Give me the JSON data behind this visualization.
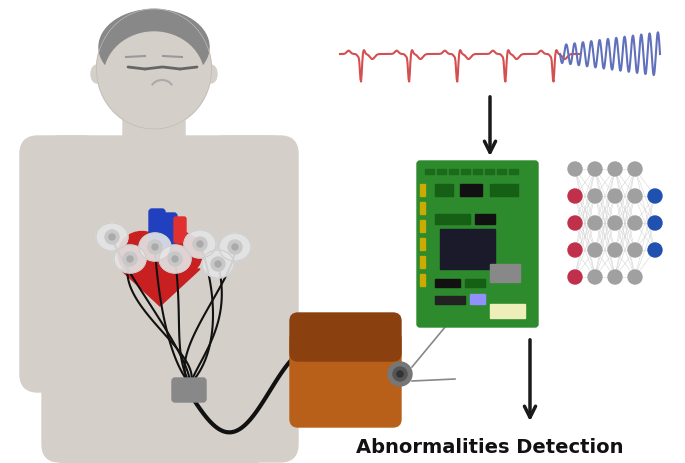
{
  "background_color": "#ffffff",
  "ecg_normal_color": "#d45050",
  "ecg_abnormal_color": "#6070bb",
  "arrow_color": "#1a1a1a",
  "text_label": "Abnormalities Detection",
  "text_fontsize": 14,
  "nn_node_color_gray": "#a0a0a0",
  "nn_node_color_pink": "#c0304a",
  "nn_node_color_blue": "#2050b0",
  "board_color": "#2d8a2d",
  "bag_main_color": "#b8601a",
  "bag_dark_color": "#8b4010",
  "skin_color": "#d4cfc8",
  "skin_shadow": "#c0bbb5",
  "heart_red": "#c82020",
  "heart_dark": "#a01818",
  "heart_blue": "#2040c0",
  "wire_color": "#111111",
  "hair_color": "#888888",
  "face_detail": "#999999"
}
